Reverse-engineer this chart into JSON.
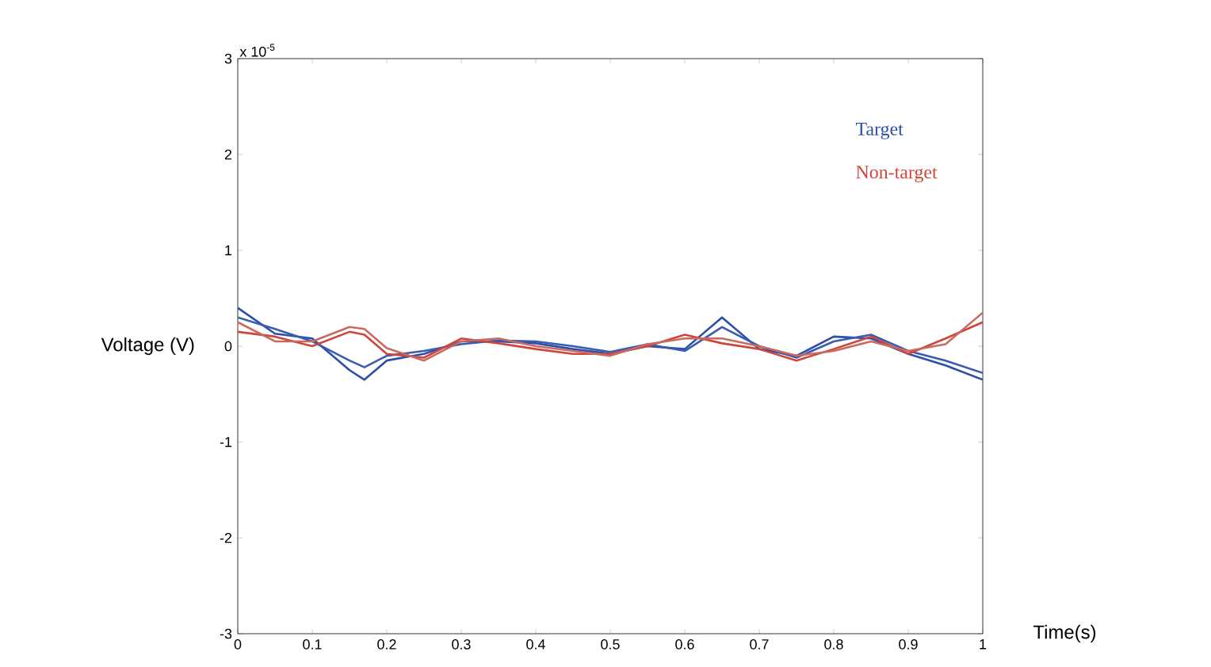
{
  "chart_data": {
    "type": "line",
    "xlabel": "Time(s)",
    "ylabel": "Voltage (V)",
    "annotations": [
      "x 10$^{-5}$"
    ],
    "x": [
      0,
      0.05,
      0.1,
      0.15,
      0.17,
      0.2,
      0.25,
      0.3,
      0.35,
      0.4,
      0.45,
      0.5,
      0.55,
      0.6,
      0.65,
      0.7,
      0.75,
      0.8,
      0.85,
      0.9,
      0.95,
      1
    ],
    "series": [
      {
        "name": "Target",
        "color": "#2b4fa8",
        "values": [
          0.4,
          0.13,
          0.08,
          -0.25,
          -0.35,
          -0.15,
          -0.08,
          0.05,
          0.05,
          0.03,
          -0.03,
          -0.08,
          0,
          -0.03,
          0.3,
          -0.03,
          -0.1,
          0.1,
          0.08,
          -0.08,
          -0.2,
          -0.35
        ]
      },
      {
        "color": "#3a5cb0",
        "values": [
          0.3,
          0.18,
          0.05,
          -0.15,
          -0.22,
          -0.1,
          -0.05,
          0.02,
          0.06,
          0.05,
          0,
          -0.06,
          0.02,
          -0.05,
          0.2,
          0,
          -0.12,
          0.05,
          0.12,
          -0.05,
          -0.15,
          -0.28
        ]
      },
      {
        "name": "Non-target",
        "color": "#d0453a",
        "values": [
          0.15,
          0.1,
          0,
          0.15,
          0.12,
          -0.08,
          -0.12,
          0.08,
          0.03,
          -0.03,
          -0.08,
          -0.08,
          0,
          0.12,
          0.03,
          -0.03,
          -0.15,
          -0.03,
          0.1,
          -0.08,
          0.08,
          0.25
        ]
      },
      {
        "color": "#c86a5e",
        "values": [
          0.25,
          0.05,
          0.05,
          0.2,
          0.18,
          -0.02,
          -0.15,
          0.05,
          0.08,
          0,
          -0.05,
          -0.1,
          0.02,
          0.08,
          0.08,
          0,
          -0.1,
          -0.05,
          0.05,
          -0.05,
          0.02,
          0.35
        ]
      }
    ],
    "xlim": [
      0,
      1
    ],
    "ylim": [
      -3,
      3
    ],
    "xticks": [
      0,
      0.1,
      0.2,
      0.3,
      0.4,
      0.5,
      0.6,
      0.7,
      0.8,
      0.9,
      1
    ],
    "yticks": [
      -3,
      -2,
      -1,
      0,
      1,
      2,
      3
    ],
    "grid": false,
    "legend": "top right",
    "marker": "none",
    "line_style": "solid"
  }
}
